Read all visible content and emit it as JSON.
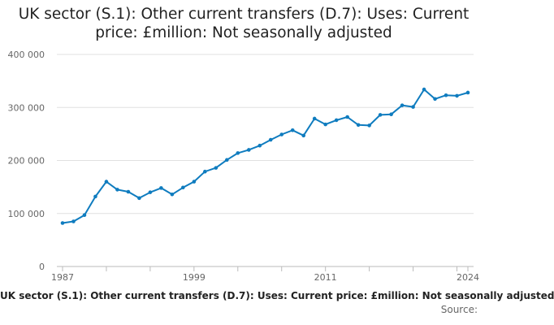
{
  "header": {
    "title_line1": "UK sector (S.1): Other current transfers (D.7): Uses: Current",
    "title_line2": "price: £million: Not seasonally adjusted"
  },
  "caption": "UK sector (S.1): Other current transfers (D.7): Uses: Current price: £million: Not seasonally adjusted",
  "source_label": "Source:",
  "chart_data": {
    "type": "line",
    "title": "UK sector (S.1): Other current transfers (D.7): Uses: Current price: £million: Not seasonally adjusted",
    "xlim": [
      1987,
      2024
    ],
    "ylim": [
      0,
      400000
    ],
    "x_ticks": [
      1987,
      1999,
      2011,
      2024
    ],
    "x_tick_labels": [
      "1987",
      "1999",
      "2011",
      "2024"
    ],
    "y_ticks": [
      0,
      100000,
      200000,
      300000,
      400000
    ],
    "y_tick_labels": [
      "0",
      "100 000",
      "200 000",
      "300 000",
      "400 000"
    ],
    "grid": "horizontal",
    "color": "#0f7cbf",
    "series": [
      {
        "x": [
          1987,
          1988,
          1989,
          1990,
          1991,
          1992,
          1993,
          1994,
          1995,
          1996,
          1997,
          1998,
          1999,
          2000,
          2001,
          2002,
          2003,
          2004,
          2005,
          2006,
          2007,
          2008,
          2009,
          2010,
          2011,
          2012,
          2013,
          2014,
          2015,
          2016,
          2017,
          2018,
          2019,
          2020,
          2021,
          2022,
          2023,
          2024
        ],
        "values": [
          82000,
          85000,
          97000,
          132000,
          160000,
          145000,
          141000,
          129000,
          140000,
          148000,
          136000,
          149000,
          160000,
          179000,
          186000,
          201000,
          214000,
          220000,
          228000,
          239000,
          249000,
          257000,
          247000,
          279000,
          268000,
          276000,
          282000,
          267000,
          266000,
          286000,
          287000,
          304000,
          301000,
          334000,
          316000,
          323000,
          322000,
          328000
        ]
      }
    ]
  }
}
